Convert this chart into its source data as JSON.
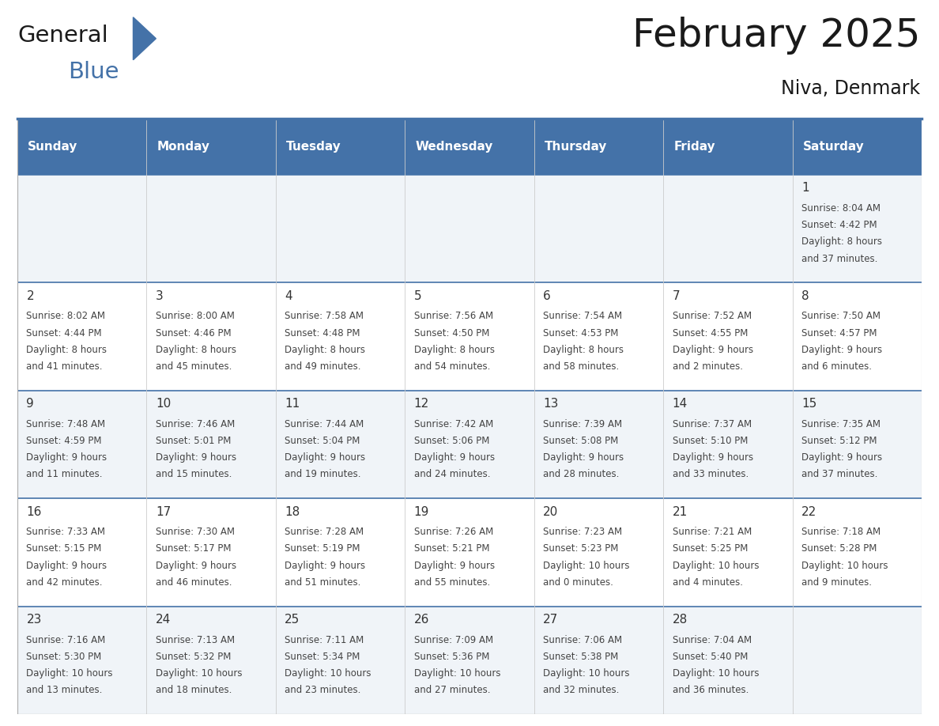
{
  "title": "February 2025",
  "subtitle": "Niva, Denmark",
  "header_bg": "#4472A8",
  "header_text": "#FFFFFF",
  "row_bg_odd": "#F0F4F8",
  "row_bg_even": "#FFFFFF",
  "separator_color": "#4472A8",
  "day_headers": [
    "Sunday",
    "Monday",
    "Tuesday",
    "Wednesday",
    "Thursday",
    "Friday",
    "Saturday"
  ],
  "days": [
    {
      "day": 1,
      "col": 6,
      "row": 0,
      "sunrise": "8:04 AM",
      "sunset": "4:42 PM",
      "daylight": "8 hours and 37 minutes."
    },
    {
      "day": 2,
      "col": 0,
      "row": 1,
      "sunrise": "8:02 AM",
      "sunset": "4:44 PM",
      "daylight": "8 hours and 41 minutes."
    },
    {
      "day": 3,
      "col": 1,
      "row": 1,
      "sunrise": "8:00 AM",
      "sunset": "4:46 PM",
      "daylight": "8 hours and 45 minutes."
    },
    {
      "day": 4,
      "col": 2,
      "row": 1,
      "sunrise": "7:58 AM",
      "sunset": "4:48 PM",
      "daylight": "8 hours and 49 minutes."
    },
    {
      "day": 5,
      "col": 3,
      "row": 1,
      "sunrise": "7:56 AM",
      "sunset": "4:50 PM",
      "daylight": "8 hours and 54 minutes."
    },
    {
      "day": 6,
      "col": 4,
      "row": 1,
      "sunrise": "7:54 AM",
      "sunset": "4:53 PM",
      "daylight": "8 hours and 58 minutes."
    },
    {
      "day": 7,
      "col": 5,
      "row": 1,
      "sunrise": "7:52 AM",
      "sunset": "4:55 PM",
      "daylight": "9 hours and 2 minutes."
    },
    {
      "day": 8,
      "col": 6,
      "row": 1,
      "sunrise": "7:50 AM",
      "sunset": "4:57 PM",
      "daylight": "9 hours and 6 minutes."
    },
    {
      "day": 9,
      "col": 0,
      "row": 2,
      "sunrise": "7:48 AM",
      "sunset": "4:59 PM",
      "daylight": "9 hours and 11 minutes."
    },
    {
      "day": 10,
      "col": 1,
      "row": 2,
      "sunrise": "7:46 AM",
      "sunset": "5:01 PM",
      "daylight": "9 hours and 15 minutes."
    },
    {
      "day": 11,
      "col": 2,
      "row": 2,
      "sunrise": "7:44 AM",
      "sunset": "5:04 PM",
      "daylight": "9 hours and 19 minutes."
    },
    {
      "day": 12,
      "col": 3,
      "row": 2,
      "sunrise": "7:42 AM",
      "sunset": "5:06 PM",
      "daylight": "9 hours and 24 minutes."
    },
    {
      "day": 13,
      "col": 4,
      "row": 2,
      "sunrise": "7:39 AM",
      "sunset": "5:08 PM",
      "daylight": "9 hours and 28 minutes."
    },
    {
      "day": 14,
      "col": 5,
      "row": 2,
      "sunrise": "7:37 AM",
      "sunset": "5:10 PM",
      "daylight": "9 hours and 33 minutes."
    },
    {
      "day": 15,
      "col": 6,
      "row": 2,
      "sunrise": "7:35 AM",
      "sunset": "5:12 PM",
      "daylight": "9 hours and 37 minutes."
    },
    {
      "day": 16,
      "col": 0,
      "row": 3,
      "sunrise": "7:33 AM",
      "sunset": "5:15 PM",
      "daylight": "9 hours and 42 minutes."
    },
    {
      "day": 17,
      "col": 1,
      "row": 3,
      "sunrise": "7:30 AM",
      "sunset": "5:17 PM",
      "daylight": "9 hours and 46 minutes."
    },
    {
      "day": 18,
      "col": 2,
      "row": 3,
      "sunrise": "7:28 AM",
      "sunset": "5:19 PM",
      "daylight": "9 hours and 51 minutes."
    },
    {
      "day": 19,
      "col": 3,
      "row": 3,
      "sunrise": "7:26 AM",
      "sunset": "5:21 PM",
      "daylight": "9 hours and 55 minutes."
    },
    {
      "day": 20,
      "col": 4,
      "row": 3,
      "sunrise": "7:23 AM",
      "sunset": "5:23 PM",
      "daylight": "10 hours and 0 minutes."
    },
    {
      "day": 21,
      "col": 5,
      "row": 3,
      "sunrise": "7:21 AM",
      "sunset": "5:25 PM",
      "daylight": "10 hours and 4 minutes."
    },
    {
      "day": 22,
      "col": 6,
      "row": 3,
      "sunrise": "7:18 AM",
      "sunset": "5:28 PM",
      "daylight": "10 hours and 9 minutes."
    },
    {
      "day": 23,
      "col": 0,
      "row": 4,
      "sunrise": "7:16 AM",
      "sunset": "5:30 PM",
      "daylight": "10 hours and 13 minutes."
    },
    {
      "day": 24,
      "col": 1,
      "row": 4,
      "sunrise": "7:13 AM",
      "sunset": "5:32 PM",
      "daylight": "10 hours and 18 minutes."
    },
    {
      "day": 25,
      "col": 2,
      "row": 4,
      "sunrise": "7:11 AM",
      "sunset": "5:34 PM",
      "daylight": "10 hours and 23 minutes."
    },
    {
      "day": 26,
      "col": 3,
      "row": 4,
      "sunrise": "7:09 AM",
      "sunset": "5:36 PM",
      "daylight": "10 hours and 27 minutes."
    },
    {
      "day": 27,
      "col": 4,
      "row": 4,
      "sunrise": "7:06 AM",
      "sunset": "5:38 PM",
      "daylight": "10 hours and 32 minutes."
    },
    {
      "day": 28,
      "col": 5,
      "row": 4,
      "sunrise": "7:04 AM",
      "sunset": "5:40 PM",
      "daylight": "10 hours and 36 minutes."
    }
  ],
  "num_rows": 5,
  "num_cols": 7,
  "logo_general_color": "#1a1a1a",
  "logo_blue_color": "#4472A8",
  "logo_triangle_color": "#4472A8",
  "title_fontsize": 36,
  "subtitle_fontsize": 17,
  "header_fontsize": 11,
  "day_num_fontsize": 11,
  "info_fontsize": 8.5
}
